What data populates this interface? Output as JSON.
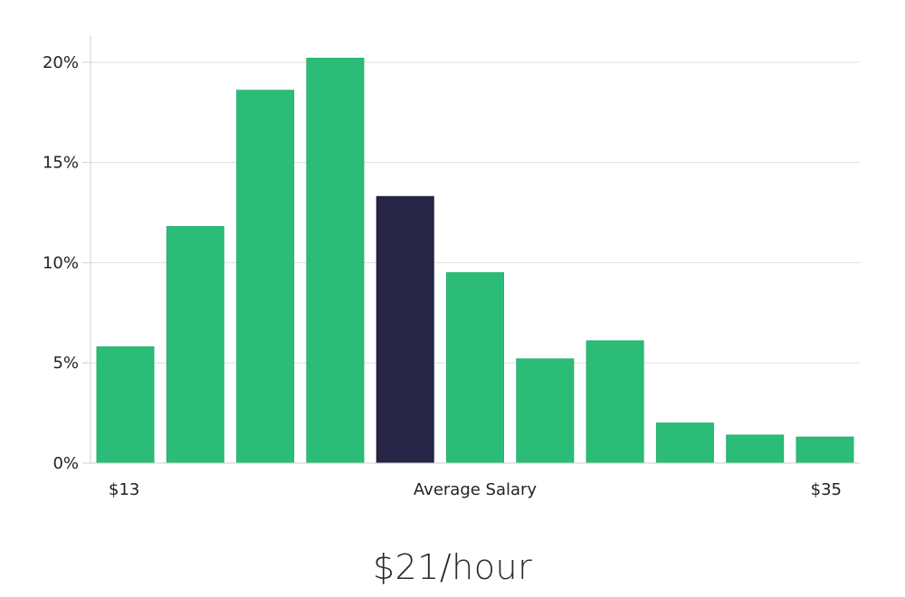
{
  "chart_data": {
    "type": "bar",
    "values": [
      5.8,
      11.8,
      18.6,
      20.2,
      13.3,
      9.5,
      5.2,
      6.1,
      2.0,
      1.4,
      1.3
    ],
    "highlight_index": 4,
    "ylim": [
      0,
      21.3
    ],
    "yticks": [
      0,
      5,
      10,
      15,
      20
    ],
    "ytick_labels": [
      "0%",
      "5%",
      "10%",
      "15%",
      "20%"
    ],
    "x_labels": {
      "left": "$13",
      "center": "Average Salary",
      "right": "$35"
    },
    "grid": true,
    "colors": {
      "bar": "#2bbd78",
      "highlight": "#272546",
      "grid": "#e3e3e3",
      "axis": "#cfcfcf"
    }
  },
  "caption": "$21/hour"
}
